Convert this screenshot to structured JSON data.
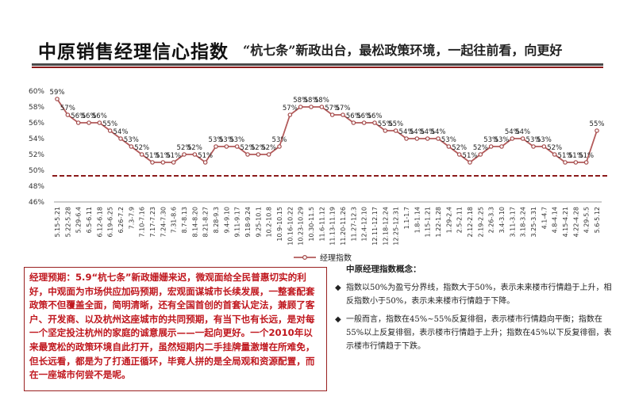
{
  "header": {
    "title": "中原销售经理信心指数",
    "subtitle": "“杭七条”新政出台，最松政策环境，一起往前看，向更好"
  },
  "chart_data": {
    "type": "line",
    "categories": [
      "5.15-5.21",
      "5.22-5.28",
      "5.29-6.4",
      "6.5-6.11",
      "6.12-6.18",
      "6.19-6.25",
      "6.26-7.2",
      "7.3-7.9",
      "7.10-7.16",
      "7.17-7.23",
      "7.24-7.30",
      "7.31-8.6",
      "8.7-8.13",
      "8.14-8.20",
      "8.21-8.27",
      "8.28-9.3",
      "9.4-9.10",
      "9.11-9.17",
      "9.18-9.24",
      "9.25-10.1",
      "10.2-10.8",
      "10.9-10.15",
      "10.16-10.22",
      "10.23-10.29",
      "10.30-11.5",
      "11.6-11.12",
      "11.13-11.19",
      "11.20-11.26",
      "11.27-12.3",
      "12.4-12.10",
      "12.11-12.17",
      "12.18-12.24",
      "12.25-12.31",
      "1.1-1.7",
      "1.8-1.14",
      "1.15-1.21",
      "1.22-1.28",
      "1.29-2.4",
      "2.5-2.11",
      "2.12-2.18",
      "2.19-2.25",
      "2.26-3.3",
      "3.4-3.10",
      "3.11-3.17",
      "3.18-3.24",
      "3.25-3.31",
      "4.1-4.7",
      "4.8-4.14",
      "4.15-4.21",
      "4.22-4.28",
      "4.29-5.5",
      "5.6-5.12"
    ],
    "series": [
      {
        "name": "经理指数",
        "values": [
          59,
          57,
          56,
          56,
          56,
          55,
          54,
          53,
          52,
          51,
          51,
          51,
          52,
          52,
          51,
          53,
          53,
          53,
          52,
          52,
          52,
          53,
          57,
          58,
          58,
          58,
          57,
          57,
          56,
          56,
          56,
          55,
          55,
          54,
          54,
          54,
          54,
          53,
          52,
          51,
          52,
          53,
          53,
          54,
          54,
          53,
          53,
          52,
          51,
          51,
          51,
          55
        ],
        "labels": [
          "59%",
          "57%",
          "56%",
          "56%",
          "56%",
          "55%",
          "54%",
          "53%",
          "52%",
          "51%",
          "51%",
          "51%",
          "52%",
          "52%",
          "51%",
          "53%",
          "53%",
          "53%",
          "52%",
          "52%",
          "52%",
          "53%",
          "57%",
          "58%",
          "58%",
          "58%",
          "57%",
          "57%",
          "56%",
          "56%",
          "56%",
          "55%",
          "55%",
          "54%",
          "54%",
          "54%",
          "54%",
          "53%",
          "52%",
          "51%",
          "52%",
          "53%",
          "53%",
          "54%",
          "54%",
          "53%",
          "53%",
          "52%",
          "51%",
          "51%",
          "51%",
          "55%"
        ]
      }
    ],
    "yticks": [
      "60%",
      "58%",
      "56%",
      "54%",
      "52%",
      "50%",
      "48%",
      "46%"
    ],
    "ylim": [
      46,
      60
    ],
    "reference_line": 49.3,
    "legend": "bottom-center",
    "grid": false,
    "colors": {
      "line": "#b35a5a",
      "marker_stroke": "#a34a4a",
      "reference": "#8b1a1a"
    }
  },
  "commentary": {
    "text": "经理预期：5.9“杭七条”新政姗姗来迟，微观面给全民普惠切实的利好，中观面为市场供应加码预期，宏观面谋城市长续发展，一整套配套政策不但覆盖全面，简明清晰，还有全国首创的首套认定法，兼顾了客户、开发商、以及杭州这座城市的共同预期，有当下也有长远，是对每一个坚定投注杭州的家庭的诚意展示——一起向更好。一个2010年以来最宽松的政策环境自此打开，虽然短期内二手挂牌量激增在所难免，但长远看，都是为了打通正循环，毕竟人拼的是全局观和资源配置，而在一座城市何尝不是呢。"
  },
  "notes": {
    "title": "中原经理指数概念：",
    "items": [
      "指数以50%为盈亏分界线，指数大于50%，表示未来楼市行情趋于上升，相反指数小于50%，表示未来楼市行情趋于下降。",
      "一般而言，指数在45%~55%反复徘徊，表示楼市行情趋向平衡；指数在55%以上反复徘徊，表示楼市行情趋于上升；指数在45%以下反复徘徊，表示楼市行情趋于下跌。"
    ]
  }
}
